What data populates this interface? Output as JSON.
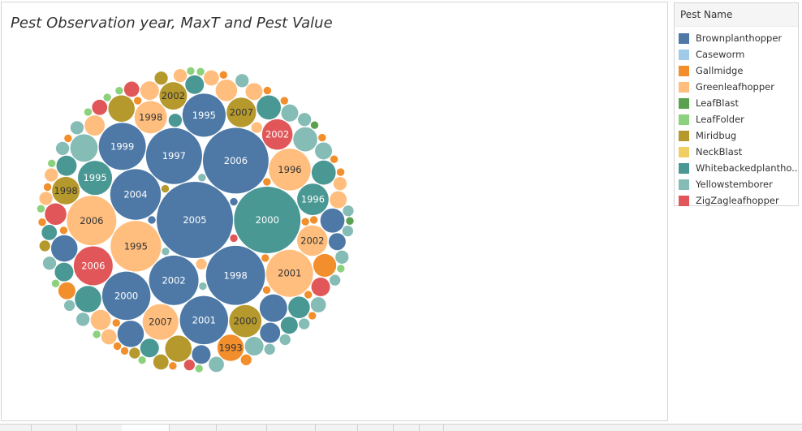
{
  "chart_data": {
    "type": "bubble",
    "title": "Pest Observation year, MaxT and  Pest Value",
    "legend": {
      "title": "Pest Name",
      "placement": "right"
    },
    "categories": [
      {
        "name": "Brownplanthopper",
        "color": "#4e79a7"
      },
      {
        "name": "Caseworm",
        "color": "#a0cbe8"
      },
      {
        "name": "Gallmidge",
        "color": "#f28e2b"
      },
      {
        "name": "Greenleafhopper",
        "color": "#ffbe7d"
      },
      {
        "name": "LeafBlast",
        "color": "#59a14f"
      },
      {
        "name": "LeafFolder",
        "color": "#8cd17d"
      },
      {
        "name": "Miridbug",
        "color": "#b6992d"
      },
      {
        "name": "NeckBlast",
        "color": "#f1ce63"
      },
      {
        "name": "Whitebackedplantho..",
        "color": "#499894"
      },
      {
        "name": "Yellowstemborer",
        "color": "#86bcb6"
      },
      {
        "name": "ZigZagleafhopper",
        "color": "#e15759"
      }
    ],
    "bubbles": [
      {
        "pest": "Brownplanthopper",
        "label": "2005",
        "value": 100
      },
      {
        "pest": "Brownplanthopper",
        "label": "2006",
        "value": 74
      },
      {
        "pest": "Brownplanthopper",
        "label": "1998",
        "value": 60
      },
      {
        "pest": "Brownplanthopper",
        "label": "1997",
        "value": 54
      },
      {
        "pest": "Brownplanthopper",
        "label": "2000",
        "value": 40
      },
      {
        "pest": "Brownplanthopper",
        "label": "2004",
        "value": 44
      },
      {
        "pest": "Brownplanthopper",
        "label": "2001",
        "value": 40
      },
      {
        "pest": "Brownplanthopper",
        "label": "1999",
        "value": 38
      },
      {
        "pest": "Brownplanthopper",
        "label": "2002",
        "value": 42
      },
      {
        "pest": "Brownplanthopper",
        "label": "1995",
        "value": 32
      },
      {
        "pest": "Brownplanthopper",
        "label": "",
        "value": 13
      },
      {
        "pest": "Brownplanthopper",
        "label": "",
        "value": 12
      },
      {
        "pest": "Brownplanthopper",
        "label": "",
        "value": 12
      },
      {
        "pest": "Brownplanthopper",
        "label": "",
        "value": 10
      },
      {
        "pest": "Brownplanthopper",
        "label": "",
        "value": 7
      },
      {
        "pest": "Brownplanthopper",
        "label": "",
        "value": 6
      },
      {
        "pest": "Brownplanthopper",
        "label": "",
        "value": 5
      },
      {
        "pest": "Brownplanthopper",
        "label": "",
        "value": 1
      },
      {
        "pest": "Brownplanthopper",
        "label": "",
        "value": 1
      },
      {
        "pest": "Whitebackedplantho..",
        "label": "2000",
        "value": 76
      },
      {
        "pest": "Whitebackedplantho..",
        "label": "1995",
        "value": 20
      },
      {
        "pest": "Whitebackedplantho..",
        "label": "1996",
        "value": 17
      },
      {
        "pest": "Whitebackedplantho..",
        "label": "",
        "value": 12
      },
      {
        "pest": "Whitebackedplantho..",
        "label": "",
        "value": 10
      },
      {
        "pest": "Whitebackedplantho..",
        "label": "",
        "value": 10
      },
      {
        "pest": "Whitebackedplantho..",
        "label": "",
        "value": 8
      },
      {
        "pest": "Whitebackedplantho..",
        "label": "",
        "value": 7
      },
      {
        "pest": "Whitebackedplantho..",
        "label": "",
        "value": 6
      },
      {
        "pest": "Whitebackedplantho..",
        "label": "",
        "value": 6
      },
      {
        "pest": "Whitebackedplantho..",
        "label": "",
        "value": 6
      },
      {
        "pest": "Whitebackedplantho..",
        "label": "",
        "value": 5
      },
      {
        "pest": "Whitebackedplantho..",
        "label": "",
        "value": 4
      },
      {
        "pest": "Whitebackedplantho..",
        "label": "",
        "value": 3
      },
      {
        "pest": "Greenleafhopper",
        "label": "1995",
        "value": 44
      },
      {
        "pest": "Greenleafhopper",
        "label": "2006",
        "value": 42
      },
      {
        "pest": "Greenleafhopper",
        "label": "2001",
        "value": 38
      },
      {
        "pest": "Greenleafhopper",
        "label": "1996",
        "value": 30
      },
      {
        "pest": "Greenleafhopper",
        "label": "2007",
        "value": 22
      },
      {
        "pest": "Greenleafhopper",
        "label": "2002",
        "value": 16
      },
      {
        "pest": "Greenleafhopper",
        "label": "1998",
        "value": 18
      },
      {
        "pest": "Greenleafhopper",
        "label": "",
        "value": 8
      },
      {
        "pest": "Greenleafhopper",
        "label": "",
        "value": 7
      },
      {
        "pest": "Greenleafhopper",
        "label": "",
        "value": 7
      },
      {
        "pest": "Greenleafhopper",
        "label": "",
        "value": 6
      },
      {
        "pest": "Greenleafhopper",
        "label": "",
        "value": 5
      },
      {
        "pest": "Greenleafhopper",
        "label": "",
        "value": 5
      },
      {
        "pest": "Greenleafhopper",
        "label": "",
        "value": 4
      },
      {
        "pest": "Greenleafhopper",
        "label": "",
        "value": 4
      },
      {
        "pest": "Greenleafhopper",
        "label": "",
        "value": 3
      },
      {
        "pest": "Greenleafhopper",
        "label": "",
        "value": 3
      },
      {
        "pest": "Greenleafhopper",
        "label": "",
        "value": 3
      },
      {
        "pest": "Greenleafhopper",
        "label": "",
        "value": 3
      },
      {
        "pest": "Greenleafhopper",
        "label": "",
        "value": 2
      },
      {
        "pest": "Greenleafhopper",
        "label": "",
        "value": 2
      },
      {
        "pest": "ZigZagleafhopper",
        "label": "2006",
        "value": 26
      },
      {
        "pest": "ZigZagleafhopper",
        "label": "2002",
        "value": 16
      },
      {
        "pest": "ZigZagleafhopper",
        "label": "",
        "value": 8
      },
      {
        "pest": "ZigZagleafhopper",
        "label": "",
        "value": 6
      },
      {
        "pest": "ZigZagleafhopper",
        "label": "",
        "value": 4
      },
      {
        "pest": "ZigZagleafhopper",
        "label": "",
        "value": 4
      },
      {
        "pest": "ZigZagleafhopper",
        "label": "",
        "value": 2
      },
      {
        "pest": "ZigZagleafhopper",
        "label": "",
        "value": 1
      },
      {
        "pest": "Miridbug",
        "label": "2000",
        "value": 18
      },
      {
        "pest": "Miridbug",
        "label": "2007",
        "value": 15
      },
      {
        "pest": "Miridbug",
        "label": "2002",
        "value": 13
      },
      {
        "pest": "Miridbug",
        "label": "1998",
        "value": 13
      },
      {
        "pest": "Miridbug",
        "label": "",
        "value": 12
      },
      {
        "pest": "Miridbug",
        "label": "",
        "value": 12
      },
      {
        "pest": "Miridbug",
        "label": "",
        "value": 4
      },
      {
        "pest": "Miridbug",
        "label": "",
        "value": 3
      },
      {
        "pest": "Miridbug",
        "label": "",
        "value": 2
      },
      {
        "pest": "Miridbug",
        "label": "",
        "value": 2
      },
      {
        "pest": "Miridbug",
        "label": "",
        "value": 1
      },
      {
        "pest": "Yellowstemborer",
        "label": "",
        "value": 13
      },
      {
        "pest": "Yellowstemborer",
        "label": "",
        "value": 10
      },
      {
        "pest": "Yellowstemborer",
        "label": "",
        "value": 6
      },
      {
        "pest": "Yellowstemborer",
        "label": "",
        "value": 5
      },
      {
        "pest": "Yellowstemborer",
        "label": "",
        "value": 5
      },
      {
        "pest": "Yellowstemborer",
        "label": "",
        "value": 4
      },
      {
        "pest": "Yellowstemborer",
        "label": "",
        "value": 4
      },
      {
        "pest": "Yellowstemborer",
        "label": "",
        "value": 3
      },
      {
        "pest": "Yellowstemborer",
        "label": "",
        "value": 3
      },
      {
        "pest": "Yellowstemborer",
        "label": "",
        "value": 3
      },
      {
        "pest": "Yellowstemborer",
        "label": "",
        "value": 3
      },
      {
        "pest": "Yellowstemborer",
        "label": "",
        "value": 3
      },
      {
        "pest": "Yellowstemborer",
        "label": "",
        "value": 3
      },
      {
        "pest": "Yellowstemborer",
        "label": "",
        "value": 3
      },
      {
        "pest": "Yellowstemborer",
        "label": "",
        "value": 2
      },
      {
        "pest": "Yellowstemborer",
        "label": "",
        "value": 2
      },
      {
        "pest": "Yellowstemborer",
        "label": "",
        "value": 2
      },
      {
        "pest": "Yellowstemborer",
        "label": "",
        "value": 2
      },
      {
        "pest": "Yellowstemborer",
        "label": "",
        "value": 2
      },
      {
        "pest": "Yellowstemborer",
        "label": "",
        "value": 2
      },
      {
        "pest": "Yellowstemborer",
        "label": "",
        "value": 2
      },
      {
        "pest": "Yellowstemborer",
        "label": "",
        "value": 1
      },
      {
        "pest": "Yellowstemborer",
        "label": "",
        "value": 1
      },
      {
        "pest": "Yellowstemborer",
        "label": "",
        "value": 1
      },
      {
        "pest": "Gallmidge",
        "label": "1993",
        "value": 12
      },
      {
        "pest": "Gallmidge",
        "label": "",
        "value": 9
      },
      {
        "pest": "Gallmidge",
        "label": "",
        "value": 5
      },
      {
        "pest": "Gallmidge",
        "label": "",
        "value": 2
      },
      {
        "pest": "Gallmidge",
        "label": "",
        "value": 1
      },
      {
        "pest": "Gallmidge",
        "label": "",
        "value": 1
      },
      {
        "pest": "Gallmidge",
        "label": "",
        "value": 1
      },
      {
        "pest": "Gallmidge",
        "label": "",
        "value": 1
      },
      {
        "pest": "Gallmidge",
        "label": "",
        "value": 1
      },
      {
        "pest": "Gallmidge",
        "label": "",
        "value": 1
      },
      {
        "pest": "Gallmidge",
        "label": "",
        "value": 1
      },
      {
        "pest": "Gallmidge",
        "label": "",
        "value": 1
      },
      {
        "pest": "Gallmidge",
        "label": "",
        "value": 1
      },
      {
        "pest": "Gallmidge",
        "label": "",
        "value": 1
      },
      {
        "pest": "Gallmidge",
        "label": "",
        "value": 1
      },
      {
        "pest": "Gallmidge",
        "label": "",
        "value": 1
      },
      {
        "pest": "Gallmidge",
        "label": "",
        "value": 1
      },
      {
        "pest": "Gallmidge",
        "label": "",
        "value": 1
      },
      {
        "pest": "Gallmidge",
        "label": "",
        "value": 1
      },
      {
        "pest": "Gallmidge",
        "label": "",
        "value": 1
      },
      {
        "pest": "Gallmidge",
        "label": "",
        "value": 1
      },
      {
        "pest": "Gallmidge",
        "label": "",
        "value": 1
      },
      {
        "pest": "Gallmidge",
        "label": "",
        "value": 1
      },
      {
        "pest": "Gallmidge",
        "label": "",
        "value": 1
      },
      {
        "pest": "Gallmidge",
        "label": "",
        "value": 1
      },
      {
        "pest": "Gallmidge",
        "label": "",
        "value": 1
      },
      {
        "pest": "LeafFolder",
        "label": "",
        "value": 1
      },
      {
        "pest": "LeafFolder",
        "label": "",
        "value": 1
      },
      {
        "pest": "LeafFolder",
        "label": "",
        "value": 1
      },
      {
        "pest": "LeafFolder",
        "label": "",
        "value": 1
      },
      {
        "pest": "LeafFolder",
        "label": "",
        "value": 1
      },
      {
        "pest": "LeafFolder",
        "label": "",
        "value": 1
      },
      {
        "pest": "LeafFolder",
        "label": "",
        "value": 1
      },
      {
        "pest": "LeafFolder",
        "label": "",
        "value": 1
      },
      {
        "pest": "LeafFolder",
        "label": "",
        "value": 1
      },
      {
        "pest": "LeafFolder",
        "label": "",
        "value": 1
      },
      {
        "pest": "LeafFolder",
        "label": "",
        "value": 1
      },
      {
        "pest": "LeafFolder",
        "label": "",
        "value": 1
      },
      {
        "pest": "LeafBlast",
        "label": "",
        "value": 1
      },
      {
        "pest": "LeafBlast",
        "label": "",
        "value": 1
      }
    ]
  }
}
